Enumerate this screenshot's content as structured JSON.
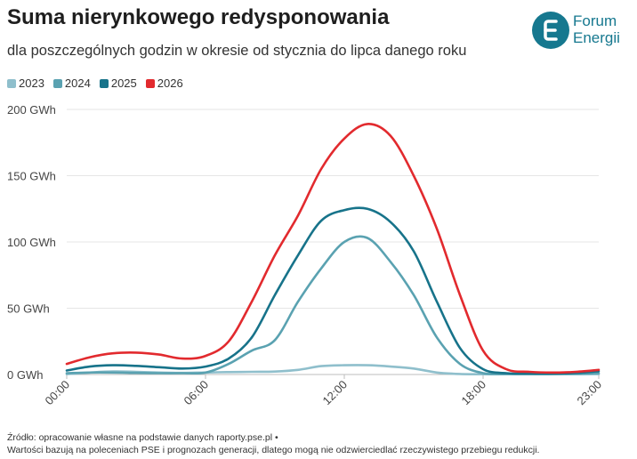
{
  "header": {
    "title": "Suma nierynkowego redysponowania",
    "subtitle": "dla poszczególnych godzin w okresie od stycznia do lipca danego roku"
  },
  "logo": {
    "line1": "Forum",
    "line2": "Energii",
    "color": "#16788f"
  },
  "footer": {
    "source": "Źródło: opracowanie własne na podstawie danych raporty.pse.pl •",
    "note": "Wartości bazują na poleceniach PSE i prognozach generacji, dlatego mogą nie odzwierciedlać rzeczywistego przebiegu redukcji."
  },
  "chart_data": {
    "type": "line",
    "x": [
      0,
      1,
      2,
      3,
      4,
      5,
      6,
      7,
      8,
      9,
      10,
      11,
      12,
      13,
      14,
      15,
      16,
      17,
      18,
      19,
      20,
      21,
      22,
      23
    ],
    "x_tick_labels": [
      "00:00",
      "06:00",
      "12:00",
      "18:00",
      "23:00"
    ],
    "x_tick_values": [
      0,
      6,
      12,
      18,
      23
    ],
    "ylim": [
      0,
      200
    ],
    "y_ticks": [
      0,
      50,
      100,
      150,
      200
    ],
    "y_tick_labels": [
      "0 GWh",
      "50 GWh",
      "100 GWh",
      "150 GWh",
      "200 GWh"
    ],
    "grid": "horizontal",
    "legend_position": "top-left",
    "series": [
      {
        "name": "2023",
        "color": "#8fbfcc",
        "values": [
          0.3,
          1.5,
          2.3,
          2,
          1.5,
          1.2,
          1.5,
          1.8,
          2,
          2.2,
          3.5,
          6.3,
          7,
          7,
          6,
          4.5,
          1.5,
          0.4,
          0.2,
          0.2,
          0.2,
          0.2,
          0.2,
          0.3
        ]
      },
      {
        "name": "2024",
        "color": "#5aa2b1",
        "values": [
          1,
          1.5,
          1.5,
          1.2,
          1,
          1,
          1.5,
          8,
          18,
          26,
          55,
          80,
          100,
          103,
          85,
          60,
          28,
          8,
          1,
          0.5,
          0.5,
          0.5,
          0.6,
          1
        ]
      },
      {
        "name": "2025",
        "color": "#17738a",
        "values": [
          3,
          6,
          7,
          6.5,
          5.5,
          4.5,
          6,
          12,
          28,
          60,
          90,
          116,
          124,
          125,
          115,
          93,
          55,
          20,
          4,
          1,
          0.6,
          0.6,
          1.2,
          2.5
        ]
      },
      {
        "name": "2026",
        "color": "#e22a2e",
        "values": [
          8,
          13,
          16,
          16.5,
          15,
          12,
          14,
          25,
          55,
          90,
          120,
          155,
          178,
          189,
          180,
          150,
          110,
          60,
          18,
          4,
          2,
          1.5,
          2,
          3.5
        ]
      }
    ]
  }
}
